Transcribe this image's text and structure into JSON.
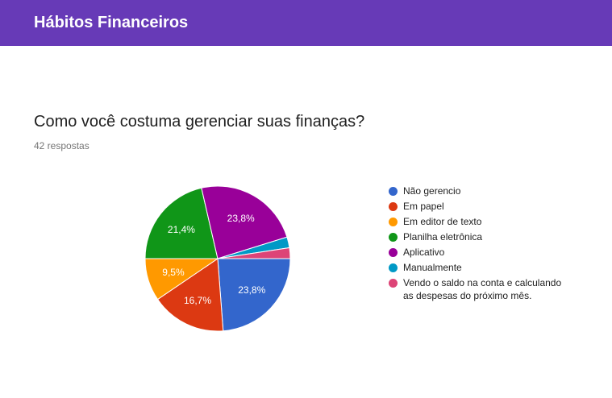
{
  "header": {
    "title": "Hábitos Financeiros"
  },
  "question": {
    "title": "Como você costuma gerenciar suas finanças?",
    "responses": "42 respostas"
  },
  "chart_data": {
    "type": "pie",
    "title": "",
    "categories": [
      "Não gerencio",
      "Em papel",
      "Em editor de texto",
      "Planilha eletrônica",
      "Aplicativo",
      "Manualmente",
      "Vendo o saldo na conta e calculando as despesas do próximo mês."
    ],
    "values": [
      23.8,
      16.7,
      9.5,
      21.4,
      23.8,
      2.4,
      2.4
    ],
    "labels": [
      "23,8%",
      "16,7%",
      "9,5%",
      "21,4%",
      "23,8%",
      "",
      ""
    ],
    "colors": [
      "#3366cc",
      "#dc3912",
      "#ff9900",
      "#109618",
      "#990099",
      "#0099c6",
      "#dd4477"
    ],
    "legend_position": "right"
  },
  "legend": {
    "items": [
      {
        "lines": [
          "Não gerencio"
        ]
      },
      {
        "lines": [
          "Em papel"
        ]
      },
      {
        "lines": [
          "Em editor de texto"
        ]
      },
      {
        "lines": [
          "Planilha eletrônica"
        ]
      },
      {
        "lines": [
          "Aplicativo"
        ]
      },
      {
        "lines": [
          "Manualmente"
        ]
      },
      {
        "lines": [
          "Vendo o saldo na conta e calculando",
          "as despesas do próximo mês."
        ]
      }
    ]
  }
}
